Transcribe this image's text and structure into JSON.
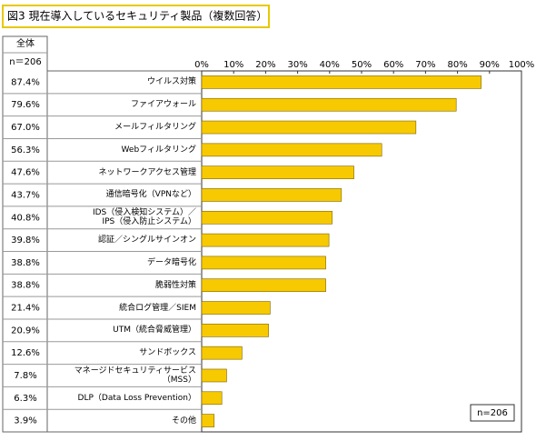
{
  "chart_data": {
    "type": "bar",
    "orientation": "horizontal",
    "title": "図3 現在導入しているセキュリティ製品（複数回答）",
    "column_header": "全体",
    "sample_label": "n＝206",
    "annotation": "n=206",
    "categories": [
      "ウイルス対策",
      "ファイアウォール",
      "メールフィルタリング",
      "Webフィルタリング",
      "ネットワークアクセス管理",
      "通信暗号化（VPNなど）",
      "IDS（侵入検知システム）／\nIPS（侵入防止システム）",
      "認証／シングルサインオン",
      "データ暗号化",
      "脆弱性対策",
      "統合ログ管理／SIEM",
      "UTM（統合脅威管理）",
      "サンドボックス",
      "マネージドセキュリティサービス\n（MSS）",
      "DLP（Data Loss Prevention）",
      "その他"
    ],
    "values": [
      87.4,
      79.6,
      67.0,
      56.3,
      47.6,
      43.7,
      40.8,
      39.8,
      38.8,
      38.8,
      21.4,
      20.9,
      12.6,
      7.8,
      6.3,
      3.9
    ],
    "value_labels": [
      "87.4%",
      "79.6%",
      "67.0%",
      "56.3%",
      "47.6%",
      "43.7%",
      "40.8%",
      "39.8%",
      "38.8%",
      "38.8%",
      "21.4%",
      "20.9%",
      "12.6%",
      "7.8%",
      "6.3%",
      "3.9%"
    ],
    "color": "#f7c900",
    "xlim": [
      0,
      100
    ],
    "xticks": [
      {
        "value": 0,
        "label": "0%"
      },
      {
        "value": 10,
        "label": "10%"
      },
      {
        "value": 20,
        "label": "20%"
      },
      {
        "value": 30,
        "label": "30%"
      },
      {
        "value": 40,
        "label": "40%"
      },
      {
        "value": 50,
        "label": "50%"
      },
      {
        "value": 60,
        "label": "60%"
      },
      {
        "value": 70,
        "label": "70%"
      },
      {
        "value": 80,
        "label": "80%"
      },
      {
        "value": 90,
        "label": "90%"
      },
      {
        "value": 100,
        "label": "100%"
      }
    ]
  }
}
